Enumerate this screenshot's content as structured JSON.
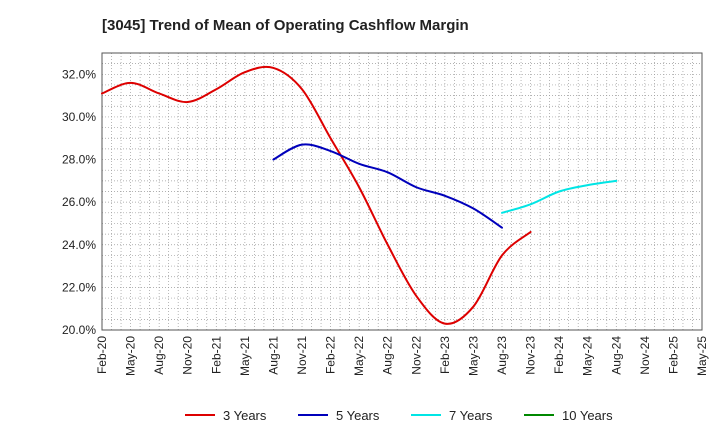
{
  "chart_data": {
    "type": "line",
    "title": "[3045]  Trend of Mean of Operating Cashflow Margin",
    "xlabel": "",
    "ylabel": "",
    "ylim": [
      20.0,
      33.0
    ],
    "yticks": [
      20.0,
      22.0,
      24.0,
      26.0,
      28.0,
      30.0,
      32.0
    ],
    "ytick_labels": [
      "20.0%",
      "22.0%",
      "24.0%",
      "26.0%",
      "28.0%",
      "30.0%",
      "32.0%"
    ],
    "xtick_labels": [
      "Feb-20",
      "May-20",
      "Aug-20",
      "Nov-20",
      "Feb-21",
      "May-21",
      "Aug-21",
      "Nov-21",
      "Feb-22",
      "May-22",
      "Aug-22",
      "Nov-22",
      "Feb-23",
      "May-23",
      "Aug-23",
      "Nov-23",
      "Feb-24",
      "May-24",
      "Aug-24",
      "Nov-24",
      "Feb-25",
      "May-25"
    ],
    "grid": true,
    "legend_position": "bottom",
    "series": [
      {
        "name": "3 Years",
        "color": "#dd0000",
        "points": [
          [
            0,
            31.1
          ],
          [
            1,
            31.6
          ],
          [
            2,
            31.1
          ],
          [
            3,
            30.7
          ],
          [
            4,
            31.3
          ],
          [
            5,
            32.1
          ],
          [
            6,
            32.3
          ],
          [
            7,
            31.3
          ],
          [
            8,
            29.0
          ],
          [
            9,
            26.7
          ],
          [
            10,
            24.0
          ],
          [
            11,
            21.6
          ],
          [
            12,
            20.3
          ],
          [
            13,
            21.1
          ],
          [
            14,
            23.5
          ],
          [
            15,
            24.6
          ]
        ]
      },
      {
        "name": "5 Years",
        "color": "#0000bb",
        "points": [
          [
            6,
            28.0
          ],
          [
            7,
            28.7
          ],
          [
            8,
            28.4
          ],
          [
            9,
            27.8
          ],
          [
            10,
            27.4
          ],
          [
            11,
            26.7
          ],
          [
            12,
            26.3
          ],
          [
            13,
            25.7
          ],
          [
            14,
            24.8
          ]
        ]
      },
      {
        "name": "7 Years",
        "color": "#00e5e5",
        "points": [
          [
            14,
            25.5
          ],
          [
            15,
            25.9
          ],
          [
            16,
            26.5
          ],
          [
            17,
            26.8
          ],
          [
            18,
            27.0
          ]
        ]
      },
      {
        "name": "10 Years",
        "color": "#008800",
        "points": []
      }
    ]
  }
}
